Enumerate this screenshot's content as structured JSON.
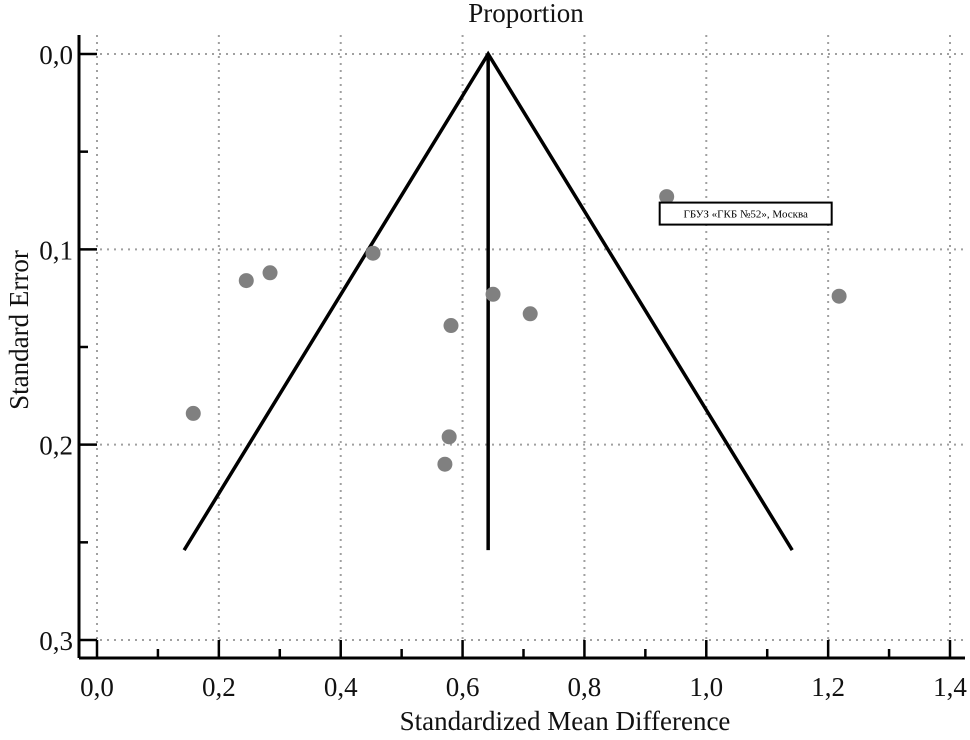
{
  "chart_data": {
    "type": "scatter",
    "subtype": "funnel",
    "title": "Proportion",
    "xlabel": "Standardized Mean Difference",
    "ylabel": "Standard Error",
    "xlim": [
      0.0,
      1.4
    ],
    "ylim": [
      0.0,
      0.3
    ],
    "y_inverted": true,
    "x_ticks": [
      "0,0",
      "0,2",
      "0,4",
      "0,6",
      "0,8",
      "1,0",
      "1,2",
      "1,4"
    ],
    "x_tick_values": [
      0.0,
      0.2,
      0.4,
      0.6,
      0.8,
      1.0,
      1.2,
      1.4
    ],
    "y_ticks": [
      "0,0",
      "0,1",
      "0,2",
      "0,3"
    ],
    "y_tick_values": [
      0.0,
      0.1,
      0.2,
      0.3
    ],
    "grid": true,
    "points": [
      {
        "x": 0.158,
        "y": 0.184
      },
      {
        "x": 0.245,
        "y": 0.116
      },
      {
        "x": 0.284,
        "y": 0.112
      },
      {
        "x": 0.453,
        "y": 0.102
      },
      {
        "x": 0.65,
        "y": 0.123
      },
      {
        "x": 0.711,
        "y": 0.133
      },
      {
        "x": 0.581,
        "y": 0.139
      },
      {
        "x": 0.578,
        "y": 0.196
      },
      {
        "x": 0.571,
        "y": 0.21
      },
      {
        "x": 0.935,
        "y": 0.073,
        "label": "ГБУЗ «ГКБ №52», Москва"
      },
      {
        "x": 1.218,
        "y": 0.124
      }
    ],
    "funnel": {
      "center": 0.642,
      "left_bottom": 0.143,
      "right_bottom": 1.141,
      "se_max": 0.254
    },
    "colors": {
      "point": "#808080",
      "line": "#000000",
      "grid": "#a0a0a0"
    }
  }
}
